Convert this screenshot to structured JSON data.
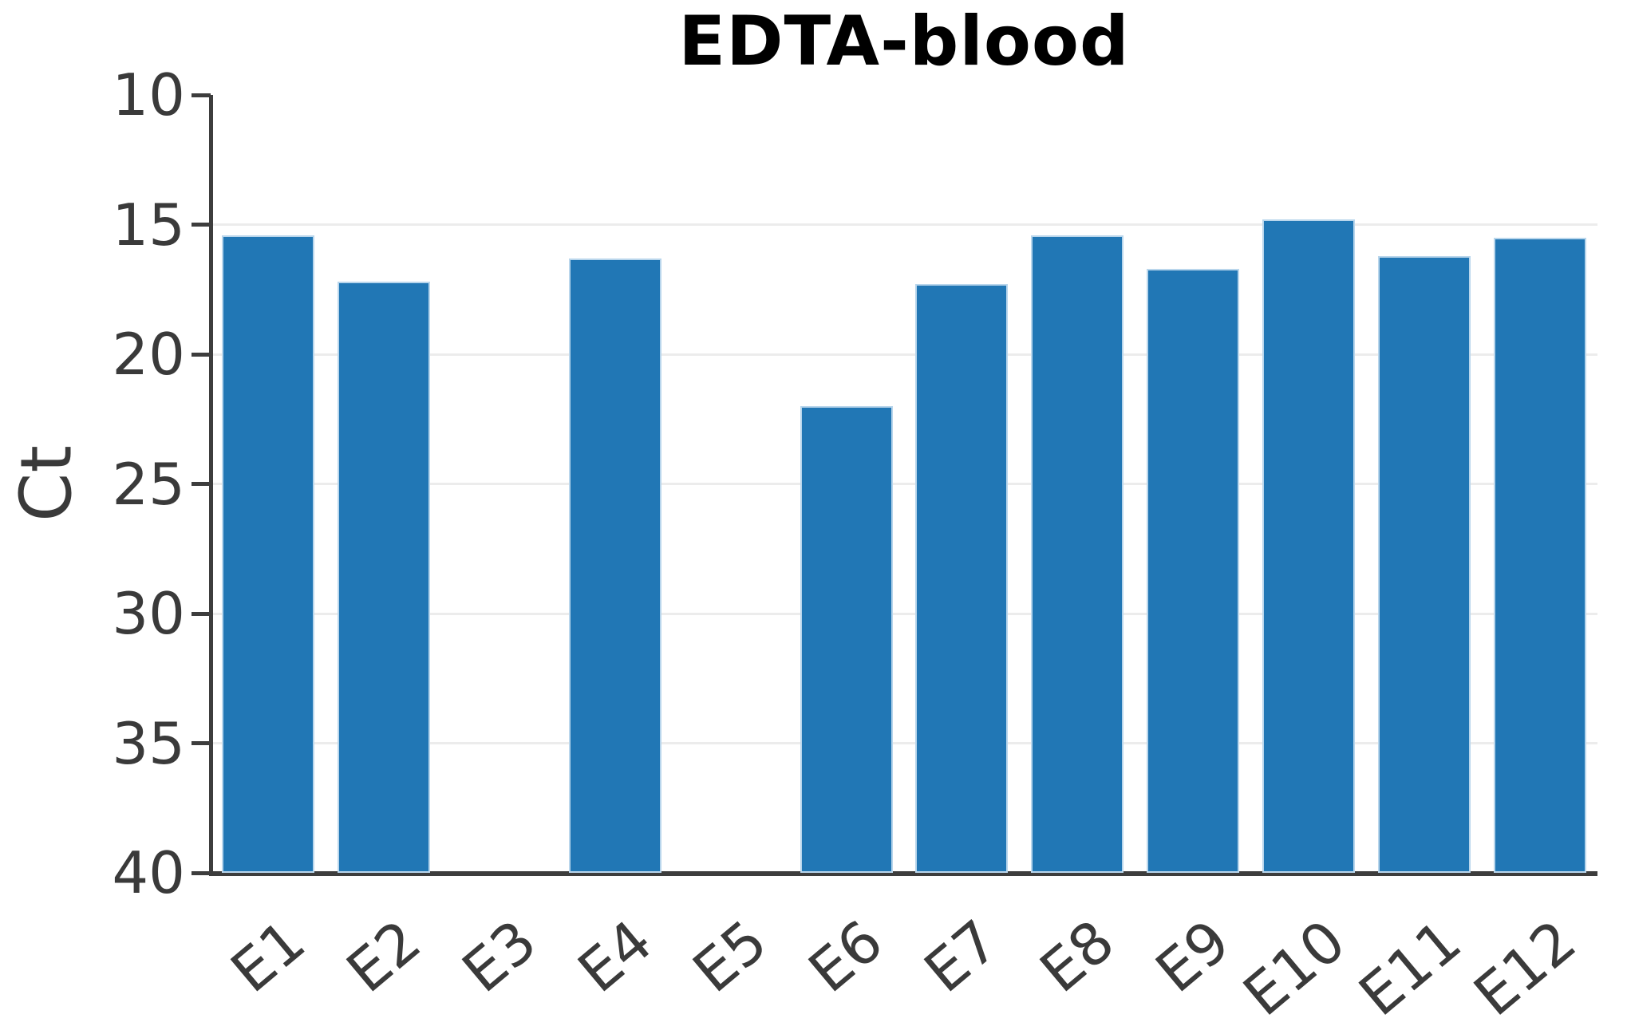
{
  "chart_data": {
    "type": "bar",
    "title": "EDTA-blood",
    "xlabel": "",
    "ylabel": "Ct",
    "categories": [
      "E1",
      "E2",
      "E3",
      "E4",
      "E5",
      "E6",
      "E7",
      "E8",
      "E9",
      "E10",
      "E11",
      "E12"
    ],
    "values": [
      15.4,
      17.2,
      null,
      16.3,
      null,
      22.0,
      17.3,
      15.4,
      16.7,
      14.8,
      16.2,
      15.5
    ],
    "missing_categories": [
      "E3",
      "E5"
    ],
    "ylim": [
      10,
      40
    ],
    "y_axis_inverted": true,
    "yticks": [
      10,
      15,
      20,
      25,
      30,
      35,
      40
    ],
    "gridlines": [
      15,
      20,
      25,
      30,
      35
    ],
    "grid": "horizontal-light",
    "legend": "none",
    "bar_width_fraction": 0.8,
    "x_tick_rotation_deg": 40,
    "colors": {
      "bar": "#2177b5",
      "bar_edge": "#b9d6ec",
      "grid": "#ececec",
      "axis": "#3d3d3d",
      "tick_text": "#3a3a3a",
      "title_text": "#000000",
      "background": "#ffffff"
    }
  }
}
